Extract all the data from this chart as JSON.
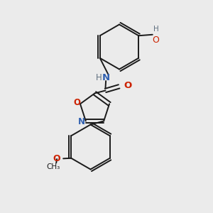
{
  "bg_color": "#ebebeb",
  "bond_color": "#1a1a1a",
  "atom_colors": {
    "N": "#3060b0",
    "O": "#cc2200",
    "H": "#607080",
    "C": "#1a1a1a"
  },
  "figsize": [
    3.0,
    3.0
  ],
  "dpi": 100,
  "lw": 1.4,
  "fs": 8.5,
  "xlim": [
    0,
    10
  ],
  "ylim": [
    0,
    10
  ]
}
